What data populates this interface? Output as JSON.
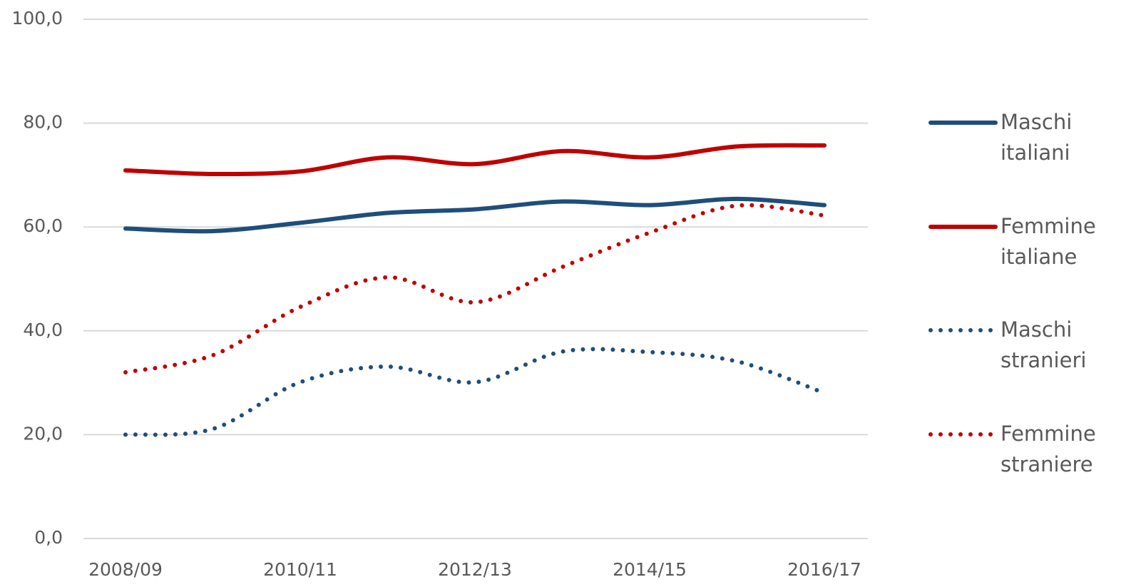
{
  "chart_data": {
    "type": "line",
    "smooth": true,
    "categories": [
      "2008/09",
      null,
      "2010/11",
      null,
      "2012/13",
      null,
      "2014/15",
      null,
      "2016/17"
    ],
    "series": [
      {
        "name": "Maschi italiani",
        "color": "#1f4e79",
        "style": "solid",
        "values": [
          59.7,
          59.2,
          60.8,
          62.7,
          63.4,
          64.9,
          64.2,
          65.4,
          64.2
        ]
      },
      {
        "name": "Femmine italiane",
        "color": "#c00000",
        "style": "solid",
        "values": [
          70.9,
          70.2,
          70.7,
          73.4,
          72.1,
          74.6,
          73.4,
          75.5,
          75.7
        ]
      },
      {
        "name": "Maschi stranieri",
        "color": "#1f4e79",
        "style": "dotted",
        "values": [
          20.0,
          21.1,
          30.1,
          33.1,
          30.1,
          36.0,
          35.9,
          34.1,
          28.0
        ]
      },
      {
        "name": "Femmine straniere",
        "color": "#c00000",
        "style": "dotted",
        "values": [
          32.0,
          35.3,
          44.6,
          50.3,
          45.5,
          52.3,
          58.9,
          64.1,
          62.2
        ]
      }
    ],
    "ylim": [
      0,
      100
    ],
    "yticks": [
      {
        "value": 0,
        "label": "0,0"
      },
      {
        "value": 20,
        "label": "20,0"
      },
      {
        "value": 40,
        "label": "40,0"
      },
      {
        "value": 60,
        "label": "60,0"
      },
      {
        "value": 80,
        "label": "80,0"
      },
      {
        "value": 100,
        "label": "100,0"
      }
    ],
    "grid": true,
    "legend": "right"
  }
}
